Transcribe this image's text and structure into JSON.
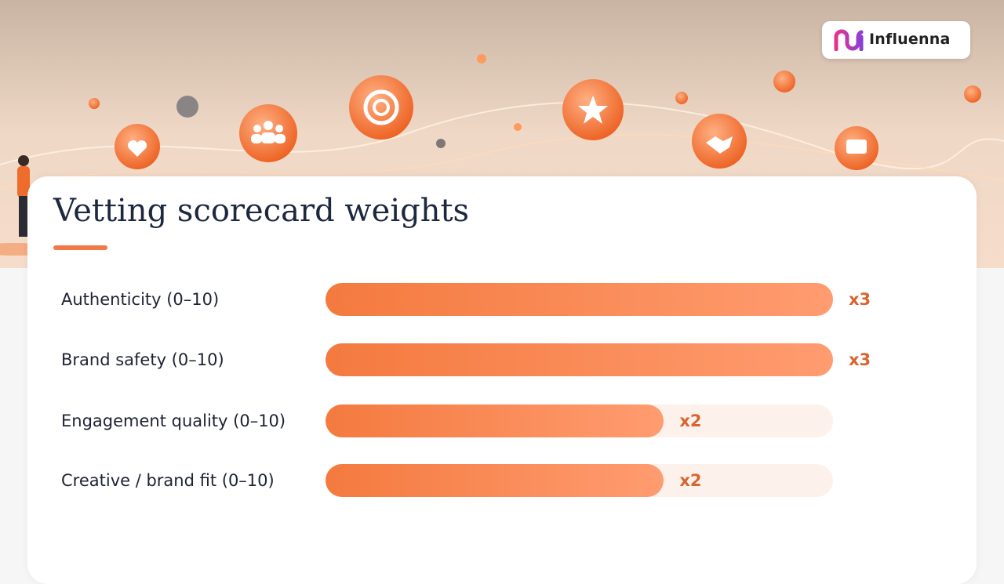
{
  "brand": "Influenna",
  "chart_data": {
    "type": "bar",
    "title": "Vetting scorecard weights",
    "categories": [
      "Authenticity (0–10)",
      "Brand safety (0–10)",
      "Engagement quality (0–10)",
      "Creative / brand fit (0–10)"
    ],
    "values": [
      3,
      3,
      2,
      2
    ],
    "value_labels": [
      "x3",
      "x3",
      "x2",
      "x2"
    ],
    "color": "#f47a3f"
  }
}
